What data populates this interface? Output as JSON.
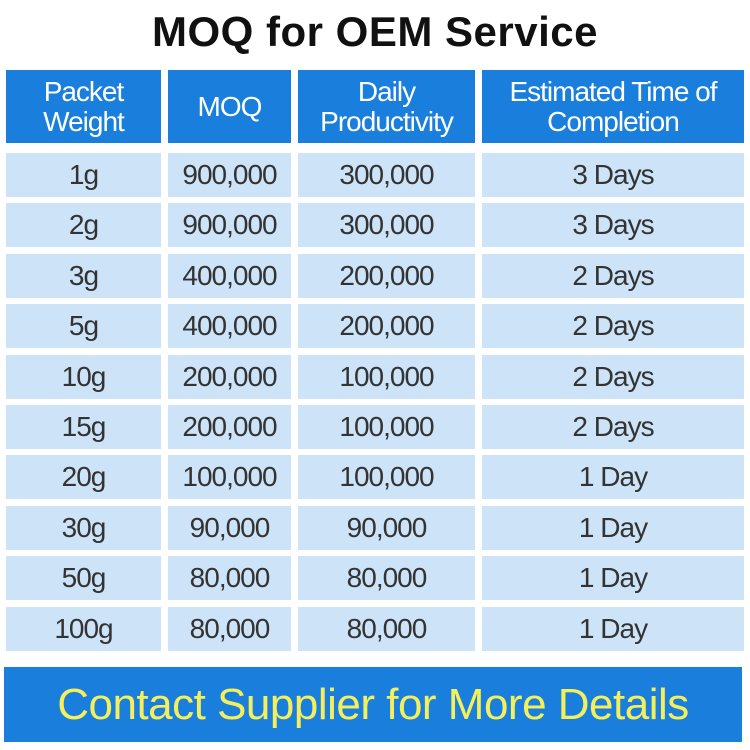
{
  "title": "MOQ for OEM Service",
  "table": {
    "headers": [
      "Packet Weight",
      "MOQ",
      "Daily Productivity",
      "Estimated Time of Completion"
    ],
    "rows": [
      [
        "1g",
        "900,000",
        "300,000",
        "3 Days"
      ],
      [
        "2g",
        "900,000",
        "300,000",
        "3 Days"
      ],
      [
        "3g",
        "400,000",
        "200,000",
        "2 Days"
      ],
      [
        "5g",
        "400,000",
        "200,000",
        "2 Days"
      ],
      [
        "10g",
        "200,000",
        "100,000",
        "2 Days"
      ],
      [
        "15g",
        "200,000",
        "100,000",
        "2 Days"
      ],
      [
        "20g",
        "100,000",
        "100,000",
        "1 Day"
      ],
      [
        "30g",
        "90,000",
        "90,000",
        "1 Day"
      ],
      [
        "50g",
        "80,000",
        "80,000",
        "1 Day"
      ],
      [
        "100g",
        "80,000",
        "80,000",
        "1 Day"
      ]
    ]
  },
  "banner": "Contact Supplier for More Details",
  "colors": {
    "header": "#1a7fdc",
    "cell": "#cce3f8",
    "banner_text": "#f4ef5a"
  }
}
